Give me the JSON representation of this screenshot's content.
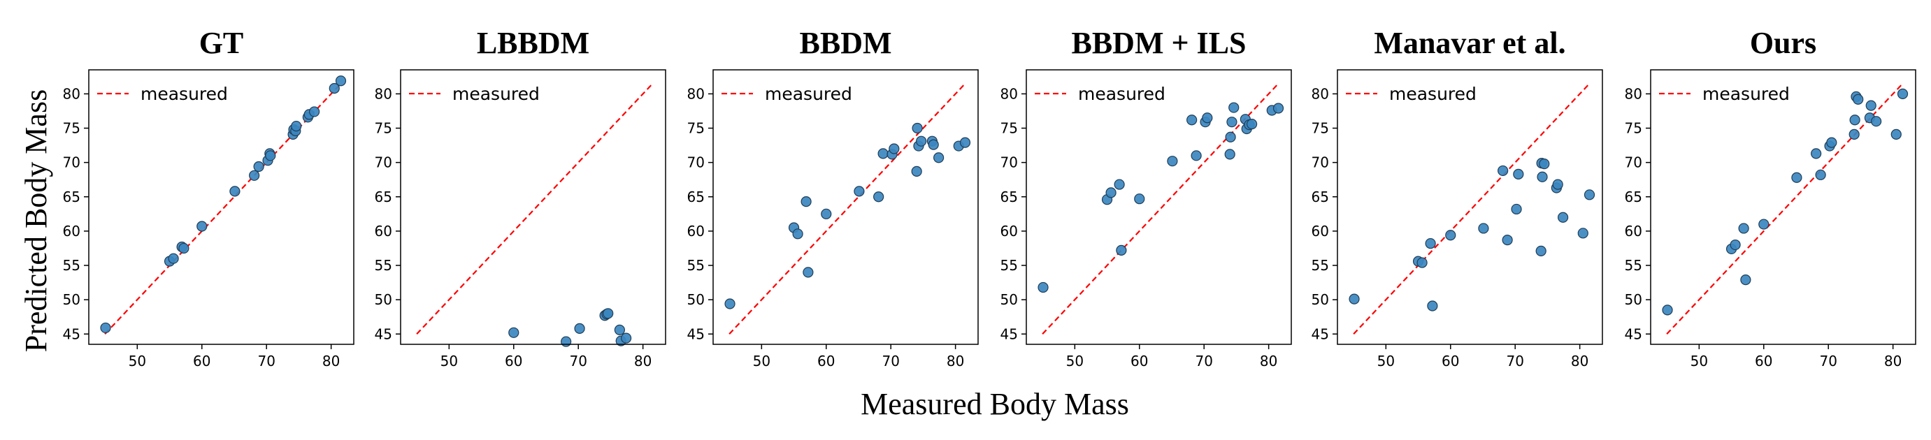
{
  "figure": {
    "xlabel": "Measured Body Mass",
    "ylabel": "Predicted Body Mass"
  },
  "colors": {
    "point": "#3b87c0",
    "point_edge": "#1f3d57",
    "line": "#ff0000"
  },
  "chart_data": [
    {
      "type": "scatter",
      "title": "GT",
      "legend": "measured",
      "xlim": [
        42.5,
        83.5
      ],
      "ylim": [
        43.5,
        83.5
      ],
      "xticks": [
        50,
        60,
        70,
        80
      ],
      "yticks": [
        45,
        50,
        55,
        60,
        65,
        70,
        75,
        80
      ],
      "line": [
        [
          45,
          45
        ],
        [
          81.5,
          81.5
        ]
      ],
      "points": [
        [
          45.1,
          45.9
        ],
        [
          55.0,
          55.6
        ],
        [
          55.6,
          56.0
        ],
        [
          56.9,
          57.7
        ],
        [
          57.2,
          57.5
        ],
        [
          60.0,
          60.7
        ],
        [
          65.1,
          65.8
        ],
        [
          68.1,
          68.1
        ],
        [
          68.8,
          69.4
        ],
        [
          70.2,
          70.3
        ],
        [
          70.5,
          71.3
        ],
        [
          70.6,
          71.0
        ],
        [
          74.1,
          74.1
        ],
        [
          74.2,
          74.8
        ],
        [
          74.5,
          74.6
        ],
        [
          74.6,
          75.3
        ],
        [
          76.4,
          76.6
        ],
        [
          76.6,
          77.0
        ],
        [
          77.4,
          77.4
        ],
        [
          80.5,
          80.8
        ],
        [
          81.5,
          81.9
        ]
      ]
    },
    {
      "type": "scatter",
      "title": "LBBDM",
      "legend": "measured",
      "xlim": [
        42.5,
        83.5
      ],
      "ylim": [
        43.5,
        83.5
      ],
      "xticks": [
        50,
        60,
        70,
        80
      ],
      "yticks": [
        45,
        50,
        55,
        60,
        65,
        70,
        75,
        80
      ],
      "line": [
        [
          45,
          45
        ],
        [
          81.5,
          81.5
        ]
      ],
      "points": [
        [
          60.0,
          45.2
        ],
        [
          68.1,
          43.9
        ],
        [
          70.2,
          45.8
        ],
        [
          74.1,
          47.7
        ],
        [
          74.4,
          47.9
        ],
        [
          74.6,
          48.0
        ],
        [
          76.4,
          45.6
        ],
        [
          76.6,
          44.0
        ],
        [
          77.4,
          44.4
        ]
      ]
    },
    {
      "type": "scatter",
      "title": "BBDM",
      "legend": "measured",
      "xlim": [
        42.5,
        83.5
      ],
      "ylim": [
        43.5,
        83.5
      ],
      "xticks": [
        50,
        60,
        70,
        80
      ],
      "yticks": [
        45,
        50,
        55,
        60,
        65,
        70,
        75,
        80
      ],
      "line": [
        [
          45,
          45
        ],
        [
          81.5,
          81.5
        ]
      ],
      "points": [
        [
          45.1,
          49.4
        ],
        [
          55.0,
          60.5
        ],
        [
          55.6,
          59.6
        ],
        [
          56.9,
          64.3
        ],
        [
          57.2,
          54.0
        ],
        [
          60.0,
          62.5
        ],
        [
          65.1,
          65.8
        ],
        [
          68.1,
          65.0
        ],
        [
          68.8,
          71.3
        ],
        [
          70.2,
          71.2
        ],
        [
          70.5,
          72.0
        ],
        [
          74.0,
          68.7
        ],
        [
          74.1,
          75.0
        ],
        [
          74.3,
          72.4
        ],
        [
          74.7,
          73.1
        ],
        [
          76.4,
          73.1
        ],
        [
          76.6,
          72.6
        ],
        [
          77.4,
          70.7
        ],
        [
          80.5,
          72.4
        ],
        [
          81.5,
          72.9
        ]
      ]
    },
    {
      "type": "scatter",
      "title": "BBDM + ILS",
      "legend": "measured",
      "xlim": [
        42.5,
        83.5
      ],
      "ylim": [
        43.5,
        83.5
      ],
      "xticks": [
        50,
        60,
        70,
        80
      ],
      "yticks": [
        45,
        50,
        55,
        60,
        65,
        70,
        75,
        80
      ],
      "line": [
        [
          45,
          45
        ],
        [
          81.5,
          81.5
        ]
      ],
      "points": [
        [
          45.1,
          51.8
        ],
        [
          55.0,
          64.6
        ],
        [
          55.6,
          65.6
        ],
        [
          56.9,
          66.8
        ],
        [
          57.2,
          57.2
        ],
        [
          60.0,
          64.7
        ],
        [
          65.1,
          70.2
        ],
        [
          68.1,
          76.2
        ],
        [
          68.8,
          71.0
        ],
        [
          70.2,
          75.9
        ],
        [
          70.5,
          76.5
        ],
        [
          74.0,
          71.2
        ],
        [
          74.1,
          73.7
        ],
        [
          74.3,
          75.9
        ],
        [
          74.6,
          78.0
        ],
        [
          76.4,
          76.3
        ],
        [
          76.6,
          74.9
        ],
        [
          77.0,
          75.5
        ],
        [
          77.4,
          75.6
        ],
        [
          80.5,
          77.6
        ],
        [
          81.5,
          77.9
        ]
      ]
    },
    {
      "type": "scatter",
      "title": "Manavar et al.",
      "legend": "measured",
      "xlim": [
        42.5,
        83.5
      ],
      "ylim": [
        43.5,
        83.5
      ],
      "xticks": [
        50,
        60,
        70,
        80
      ],
      "yticks": [
        45,
        50,
        55,
        60,
        65,
        70,
        75,
        80
      ],
      "line": [
        [
          45,
          45
        ],
        [
          81.5,
          81.5
        ]
      ],
      "points": [
        [
          45.1,
          50.1
        ],
        [
          55.0,
          55.6
        ],
        [
          55.6,
          55.4
        ],
        [
          56.9,
          58.2
        ],
        [
          57.2,
          49.1
        ],
        [
          60.0,
          59.4
        ],
        [
          65.1,
          60.4
        ],
        [
          68.1,
          68.8
        ],
        [
          68.8,
          58.7
        ],
        [
          70.2,
          63.2
        ],
        [
          70.5,
          68.3
        ],
        [
          74.0,
          57.1
        ],
        [
          74.1,
          69.9
        ],
        [
          74.2,
          67.9
        ],
        [
          74.5,
          69.8
        ],
        [
          76.4,
          66.3
        ],
        [
          76.6,
          66.8
        ],
        [
          77.4,
          62.0
        ],
        [
          80.5,
          59.7
        ],
        [
          81.5,
          65.3
        ]
      ]
    },
    {
      "type": "scatter",
      "title": "Ours",
      "legend": "measured",
      "xlim": [
        42.5,
        83.5
      ],
      "ylim": [
        43.5,
        83.5
      ],
      "xticks": [
        50,
        60,
        70,
        80
      ],
      "yticks": [
        45,
        50,
        55,
        60,
        65,
        70,
        75,
        80
      ],
      "line": [
        [
          45,
          45
        ],
        [
          81.5,
          81.5
        ]
      ],
      "points": [
        [
          45.1,
          48.5
        ],
        [
          55.0,
          57.4
        ],
        [
          55.6,
          58.0
        ],
        [
          56.9,
          60.4
        ],
        [
          57.2,
          52.9
        ],
        [
          60.0,
          61.0
        ],
        [
          65.1,
          67.8
        ],
        [
          68.1,
          71.3
        ],
        [
          68.8,
          68.2
        ],
        [
          70.2,
          72.4
        ],
        [
          70.5,
          72.9
        ],
        [
          74.0,
          74.1
        ],
        [
          74.1,
          76.2
        ],
        [
          74.3,
          79.6
        ],
        [
          74.6,
          79.2
        ],
        [
          76.4,
          76.5
        ],
        [
          76.6,
          78.3
        ],
        [
          77.4,
          76.0
        ],
        [
          80.5,
          74.1
        ],
        [
          81.5,
          80.0
        ]
      ]
    }
  ]
}
